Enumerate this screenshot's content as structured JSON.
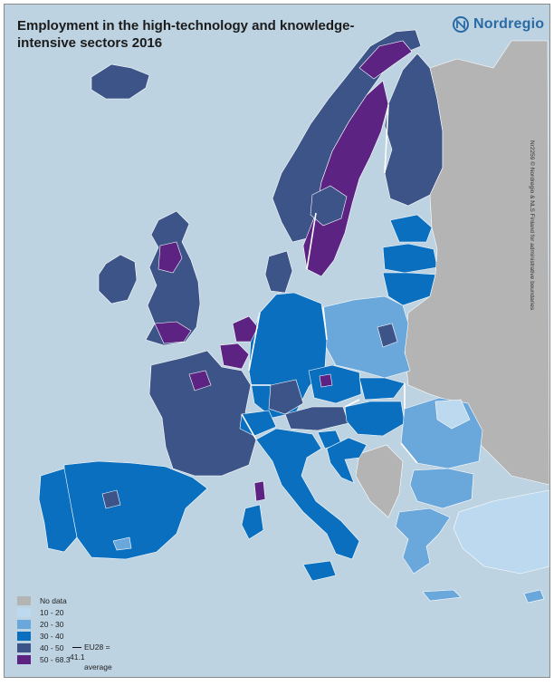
{
  "title": "Employment in the high-technology and knowledge-intensive sectors 2016",
  "logo": {
    "name": "Nordregio"
  },
  "credit": "Nr2259 © Nordregio & NLS Finland for administrative boundaries",
  "colors": {
    "sea": "#bdd3e2",
    "no_data": "#b4b4b4",
    "c10_20": "#bcd9ef",
    "c20_30": "#6aa8dc",
    "c30_40": "#0b6fbf",
    "c40_50": "#3c5487",
    "c50_68": "#5c2382"
  },
  "legend": {
    "items": [
      {
        "label": "No data",
        "color": "#b4b4b4"
      },
      {
        "label": "10 - 20",
        "color": "#bcd9ef"
      },
      {
        "label": "20 - 30",
        "color": "#6aa8dc"
      },
      {
        "label": "30 - 40",
        "color": "#0b6fbf"
      },
      {
        "label": "40 - 50",
        "color": "#3c5487"
      },
      {
        "label": "50 - 68.3",
        "color": "#5c2382"
      }
    ],
    "eu_average_label": "EU28 = 41.1",
    "eu_average_suffix": "average"
  }
}
